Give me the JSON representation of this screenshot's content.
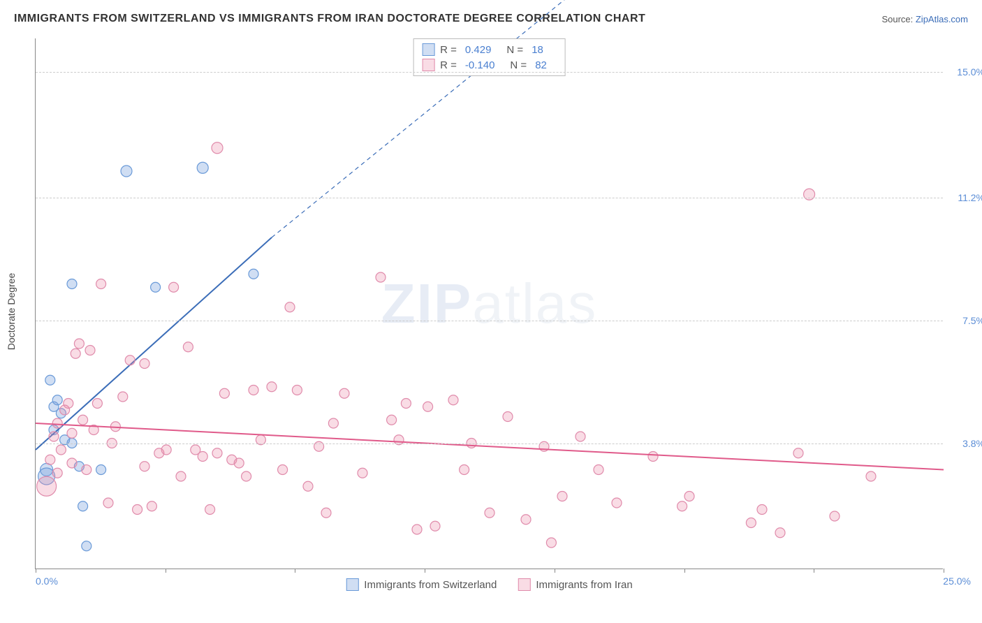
{
  "title": "IMMIGRANTS FROM SWITZERLAND VS IMMIGRANTS FROM IRAN DOCTORATE DEGREE CORRELATION CHART",
  "source_prefix": "Source: ",
  "source_name": "ZipAtlas.com",
  "ylabel": "Doctorate Degree",
  "watermark_a": "ZIP",
  "watermark_b": "atlas",
  "chart": {
    "type": "scatter",
    "xlim": [
      0.0,
      25.0
    ],
    "ylim": [
      0.0,
      16.0
    ],
    "xtick_labels": {
      "min": "0.0%",
      "max": "25.0%"
    },
    "xtick_positions": [
      0,
      3.57,
      7.14,
      10.71,
      14.29,
      17.86,
      21.43,
      25.0
    ],
    "ytick_positions": [
      3.8,
      7.5,
      11.2,
      15.0
    ],
    "ytick_labels": [
      "3.8%",
      "7.5%",
      "11.2%",
      "15.0%"
    ],
    "grid_color": "#cccccc",
    "background_color": "#ffffff",
    "axis_color": "#888888",
    "label_fontsize": 14,
    "tick_color": "#5b8dd6"
  },
  "series": [
    {
      "name": "Immigrants from Switzerland",
      "color_fill": "rgba(120,160,220,0.35)",
      "color_stroke": "#6a9ad8",
      "R": "0.429",
      "N": "18",
      "trend": {
        "x1": 0.0,
        "y1": 3.6,
        "x2": 6.5,
        "y2": 10.0,
        "dash_x2": 15.5,
        "dash_y2": 18.0,
        "color": "#3b6db8",
        "width": 2
      },
      "points": [
        {
          "x": 0.3,
          "y": 3.0,
          "r": 9
        },
        {
          "x": 0.3,
          "y": 2.8,
          "r": 12
        },
        {
          "x": 0.4,
          "y": 5.7,
          "r": 7
        },
        {
          "x": 0.5,
          "y": 4.9,
          "r": 7
        },
        {
          "x": 0.6,
          "y": 5.1,
          "r": 7
        },
        {
          "x": 0.8,
          "y": 3.9,
          "r": 7
        },
        {
          "x": 1.0,
          "y": 8.6,
          "r": 7
        },
        {
          "x": 1.0,
          "y": 3.8,
          "r": 7
        },
        {
          "x": 1.2,
          "y": 3.1,
          "r": 7
        },
        {
          "x": 1.3,
          "y": 1.9,
          "r": 7
        },
        {
          "x": 1.4,
          "y": 0.7,
          "r": 7
        },
        {
          "x": 1.8,
          "y": 3.0,
          "r": 7
        },
        {
          "x": 2.5,
          "y": 12.0,
          "r": 8
        },
        {
          "x": 3.3,
          "y": 8.5,
          "r": 7
        },
        {
          "x": 4.6,
          "y": 12.1,
          "r": 8
        },
        {
          "x": 6.0,
          "y": 8.9,
          "r": 7
        },
        {
          "x": 0.5,
          "y": 4.2,
          "r": 7
        },
        {
          "x": 0.7,
          "y": 4.7,
          "r": 7
        }
      ]
    },
    {
      "name": "Immigrants from Iran",
      "color_fill": "rgba(235,140,170,0.30)",
      "color_stroke": "#e08bab",
      "R": "-0.140",
      "N": "82",
      "trend": {
        "x1": 0.0,
        "y1": 4.4,
        "x2": 25.0,
        "y2": 3.0,
        "color": "#e05a8a",
        "width": 2
      },
      "points": [
        {
          "x": 0.3,
          "y": 2.5,
          "r": 14
        },
        {
          "x": 0.5,
          "y": 4.0,
          "r": 7
        },
        {
          "x": 0.6,
          "y": 4.4,
          "r": 7
        },
        {
          "x": 0.7,
          "y": 3.6,
          "r": 7
        },
        {
          "x": 0.8,
          "y": 4.8,
          "r": 7
        },
        {
          "x": 0.9,
          "y": 5.0,
          "r": 7
        },
        {
          "x": 1.0,
          "y": 4.1,
          "r": 7
        },
        {
          "x": 1.0,
          "y": 3.2,
          "r": 7
        },
        {
          "x": 1.1,
          "y": 6.5,
          "r": 7
        },
        {
          "x": 1.2,
          "y": 6.8,
          "r": 7
        },
        {
          "x": 1.3,
          "y": 4.5,
          "r": 7
        },
        {
          "x": 1.4,
          "y": 3.0,
          "r": 7
        },
        {
          "x": 1.5,
          "y": 6.6,
          "r": 7
        },
        {
          "x": 1.6,
          "y": 4.2,
          "r": 7
        },
        {
          "x": 1.8,
          "y": 8.6,
          "r": 7
        },
        {
          "x": 2.0,
          "y": 2.0,
          "r": 7
        },
        {
          "x": 2.2,
          "y": 4.3,
          "r": 7
        },
        {
          "x": 2.4,
          "y": 5.2,
          "r": 7
        },
        {
          "x": 2.6,
          "y": 6.3,
          "r": 7
        },
        {
          "x": 2.8,
          "y": 1.8,
          "r": 7
        },
        {
          "x": 3.0,
          "y": 3.1,
          "r": 7
        },
        {
          "x": 3.0,
          "y": 6.2,
          "r": 7
        },
        {
          "x": 3.2,
          "y": 1.9,
          "r": 7
        },
        {
          "x": 3.4,
          "y": 3.5,
          "r": 7
        },
        {
          "x": 3.6,
          "y": 3.6,
          "r": 7
        },
        {
          "x": 3.8,
          "y": 8.5,
          "r": 7
        },
        {
          "x": 4.0,
          "y": 2.8,
          "r": 7
        },
        {
          "x": 4.2,
          "y": 6.7,
          "r": 7
        },
        {
          "x": 4.4,
          "y": 3.6,
          "r": 7
        },
        {
          "x": 4.6,
          "y": 3.4,
          "r": 7
        },
        {
          "x": 4.8,
          "y": 1.8,
          "r": 7
        },
        {
          "x": 5.0,
          "y": 3.5,
          "r": 7
        },
        {
          "x": 5.0,
          "y": 12.7,
          "r": 8
        },
        {
          "x": 5.2,
          "y": 5.3,
          "r": 7
        },
        {
          "x": 5.4,
          "y": 3.3,
          "r": 7
        },
        {
          "x": 5.6,
          "y": 3.2,
          "r": 7
        },
        {
          "x": 5.8,
          "y": 2.8,
          "r": 7
        },
        {
          "x": 6.0,
          "y": 5.4,
          "r": 7
        },
        {
          "x": 6.2,
          "y": 3.9,
          "r": 7
        },
        {
          "x": 6.5,
          "y": 5.5,
          "r": 7
        },
        {
          "x": 6.8,
          "y": 3.0,
          "r": 7
        },
        {
          "x": 7.0,
          "y": 7.9,
          "r": 7
        },
        {
          "x": 7.2,
          "y": 5.4,
          "r": 7
        },
        {
          "x": 7.5,
          "y": 2.5,
          "r": 7
        },
        {
          "x": 7.8,
          "y": 3.7,
          "r": 7
        },
        {
          "x": 8.0,
          "y": 1.7,
          "r": 7
        },
        {
          "x": 8.2,
          "y": 4.4,
          "r": 7
        },
        {
          "x": 8.5,
          "y": 5.3,
          "r": 7
        },
        {
          "x": 9.0,
          "y": 2.9,
          "r": 7
        },
        {
          "x": 9.5,
          "y": 8.8,
          "r": 7
        },
        {
          "x": 9.8,
          "y": 4.5,
          "r": 7
        },
        {
          "x": 10.0,
          "y": 3.9,
          "r": 7
        },
        {
          "x": 10.2,
          "y": 5.0,
          "r": 7
        },
        {
          "x": 10.5,
          "y": 1.2,
          "r": 7
        },
        {
          "x": 10.8,
          "y": 4.9,
          "r": 7
        },
        {
          "x": 11.0,
          "y": 1.3,
          "r": 7
        },
        {
          "x": 11.5,
          "y": 5.1,
          "r": 7
        },
        {
          "x": 11.8,
          "y": 3.0,
          "r": 7
        },
        {
          "x": 12.0,
          "y": 3.8,
          "r": 7
        },
        {
          "x": 12.5,
          "y": 1.7,
          "r": 7
        },
        {
          "x": 13.0,
          "y": 4.6,
          "r": 7
        },
        {
          "x": 13.5,
          "y": 1.5,
          "r": 7
        },
        {
          "x": 14.0,
          "y": 3.7,
          "r": 7
        },
        {
          "x": 14.2,
          "y": 0.8,
          "r": 7
        },
        {
          "x": 14.5,
          "y": 2.2,
          "r": 7
        },
        {
          "x": 15.0,
          "y": 4.0,
          "r": 7
        },
        {
          "x": 15.5,
          "y": 3.0,
          "r": 7
        },
        {
          "x": 16.0,
          "y": 2.0,
          "r": 7
        },
        {
          "x": 17.0,
          "y": 3.4,
          "r": 7
        },
        {
          "x": 17.8,
          "y": 1.9,
          "r": 7
        },
        {
          "x": 18.0,
          "y": 2.2,
          "r": 7
        },
        {
          "x": 19.7,
          "y": 1.4,
          "r": 7
        },
        {
          "x": 20.0,
          "y": 1.8,
          "r": 7
        },
        {
          "x": 20.5,
          "y": 1.1,
          "r": 7
        },
        {
          "x": 21.0,
          "y": 3.5,
          "r": 7
        },
        {
          "x": 21.3,
          "y": 11.3,
          "r": 8
        },
        {
          "x": 22.0,
          "y": 1.6,
          "r": 7
        },
        {
          "x": 23.0,
          "y": 2.8,
          "r": 7
        },
        {
          "x": 0.4,
          "y": 3.3,
          "r": 7
        },
        {
          "x": 0.6,
          "y": 2.9,
          "r": 7
        },
        {
          "x": 1.7,
          "y": 5.0,
          "r": 7
        },
        {
          "x": 2.1,
          "y": 3.8,
          "r": 7
        }
      ]
    }
  ],
  "stats_box": {
    "R_label": "R =",
    "N_label": "N ="
  }
}
